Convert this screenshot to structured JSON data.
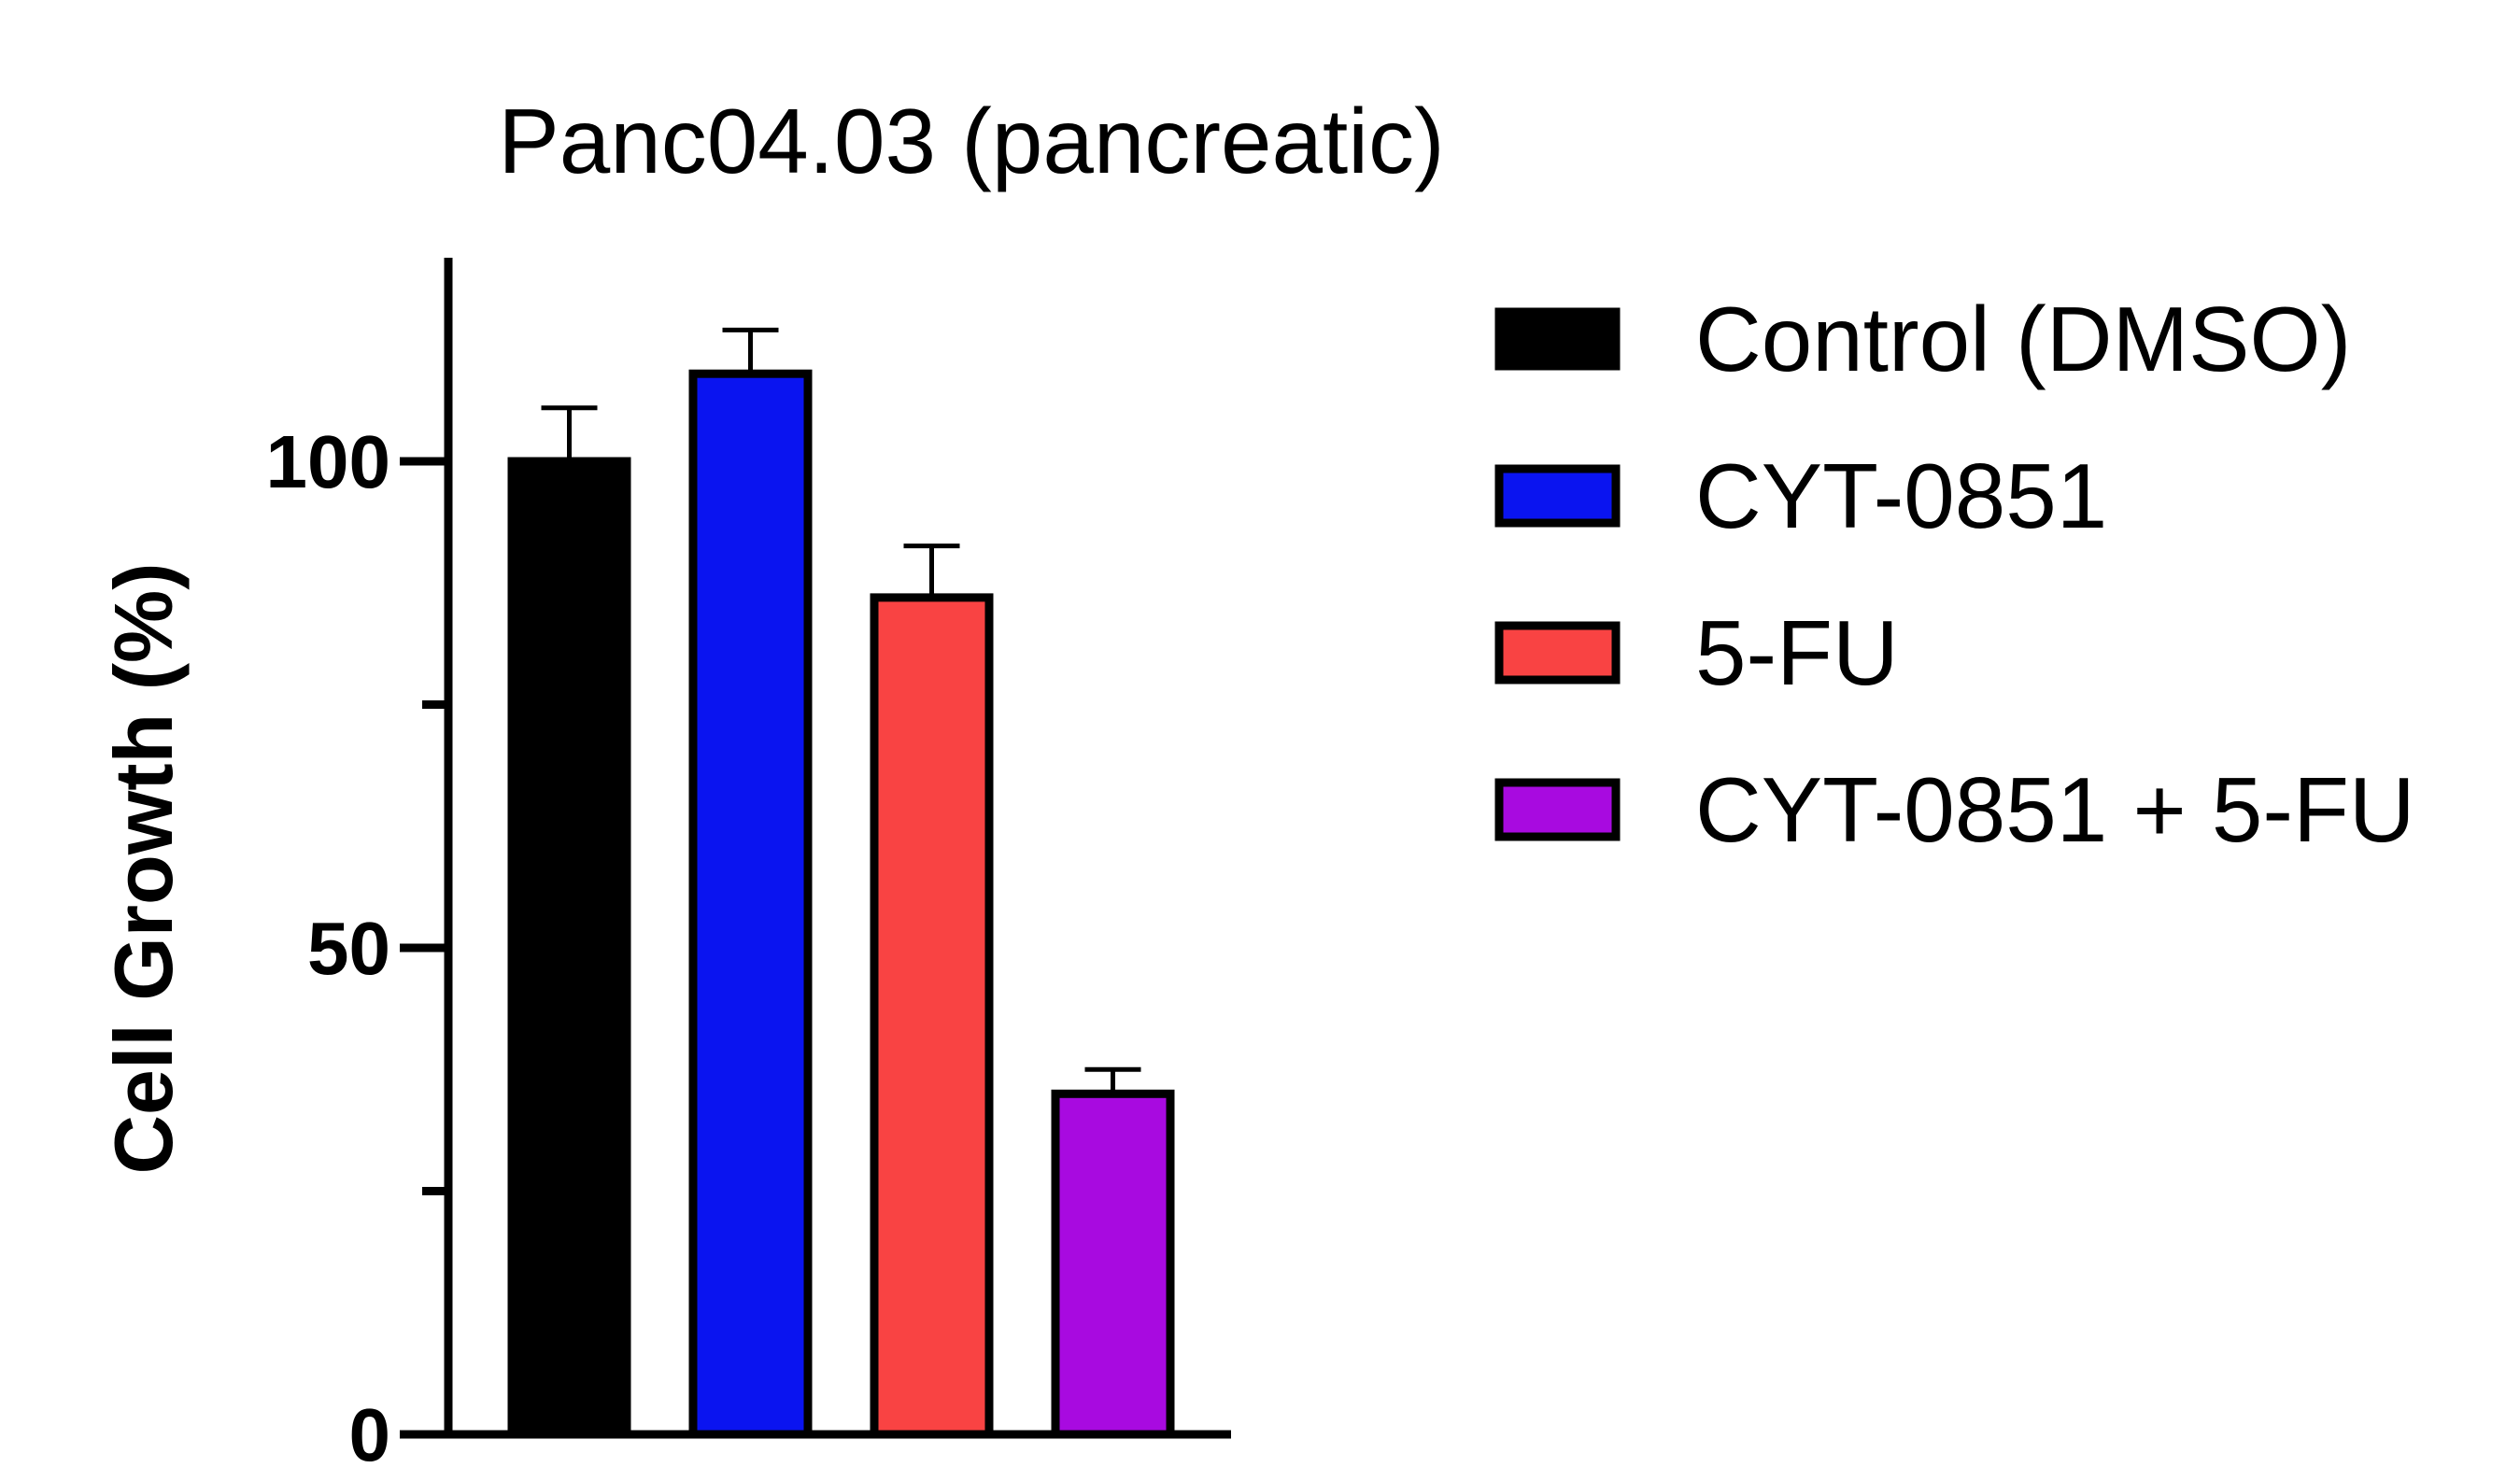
{
  "chart_data": {
    "type": "bar",
    "title": "Panc04.03 (pancreatic)",
    "xlabel": "",
    "ylabel": "Cell Growth (%)",
    "ylim": [
      0,
      120
    ],
    "yticks": [
      {
        "value": 0,
        "label": "0"
      },
      {
        "value": 50,
        "label": "50"
      },
      {
        "value": 100,
        "label": "100"
      }
    ],
    "minor_yticks": [
      25,
      75
    ],
    "categories": [
      "Control (DMSO)",
      "CYT-0851",
      "5-FU",
      "CYT-0851 + 5-FU"
    ],
    "values": [
      100,
      109,
      86,
      35
    ],
    "errors": [
      5.5,
      4.5,
      5.3,
      2.5
    ],
    "colors": [
      "#000000",
      "#0A14F0",
      "#F94343",
      "#A80AE0"
    ],
    "grid": false,
    "legend_position": "right"
  }
}
